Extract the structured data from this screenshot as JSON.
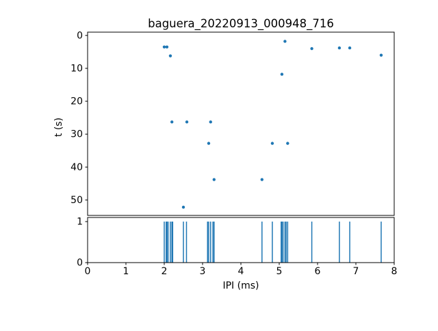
{
  "figure": {
    "background": "#ffffff",
    "accent_color": "#1f77b4",
    "spine_color": "#000000"
  },
  "chart_data": [
    {
      "type": "scatter",
      "title": "baguera_20220913_000948_716",
      "xlabel": "",
      "ylabel": "t (s)",
      "xlim": [
        0,
        8
      ],
      "ylim": [
        -1,
        54.7
      ],
      "y_inverted": true,
      "xticks": [
        0,
        1,
        2,
        3,
        4,
        5,
        6,
        7,
        8
      ],
      "yticks": [
        0,
        10,
        20,
        30,
        40,
        50
      ],
      "marker_color": "#1f77b4",
      "marker_radius": 2.2,
      "grid": false,
      "legend": false,
      "points": [
        [
          2.0,
          3.5
        ],
        [
          2.07,
          3.5
        ],
        [
          2.16,
          6.2
        ],
        [
          5.15,
          1.8
        ],
        [
          5.85,
          4.0
        ],
        [
          6.57,
          3.8
        ],
        [
          6.84,
          3.8
        ],
        [
          7.66,
          6.0
        ],
        [
          5.07,
          11.8
        ],
        [
          2.2,
          26.3
        ],
        [
          2.59,
          26.3
        ],
        [
          3.21,
          26.3
        ],
        [
          3.16,
          32.8
        ],
        [
          4.82,
          32.8
        ],
        [
          5.22,
          32.8
        ],
        [
          3.3,
          43.8
        ],
        [
          4.55,
          43.8
        ],
        [
          2.5,
          52.2
        ]
      ]
    },
    {
      "type": "spikes",
      "title": "",
      "xlabel": "IPI (ms)",
      "ylabel": "",
      "xlim": [
        0,
        8
      ],
      "ylim": [
        0,
        1.1
      ],
      "xticks": [
        0,
        1,
        2,
        3,
        4,
        5,
        6,
        7,
        8
      ],
      "yticks": [
        0,
        1
      ],
      "line_color": "#1f77b4",
      "spike_height": 1,
      "grid": false,
      "legend": false,
      "spike_x": [
        2.0,
        2.05,
        2.07,
        2.1,
        2.16,
        2.2,
        2.22,
        2.5,
        2.58,
        3.13,
        3.16,
        3.21,
        3.27,
        3.3,
        4.55,
        4.82,
        5.05,
        5.07,
        5.1,
        5.15,
        5.18,
        5.22,
        5.85,
        6.57,
        6.84,
        7.66
      ]
    }
  ]
}
